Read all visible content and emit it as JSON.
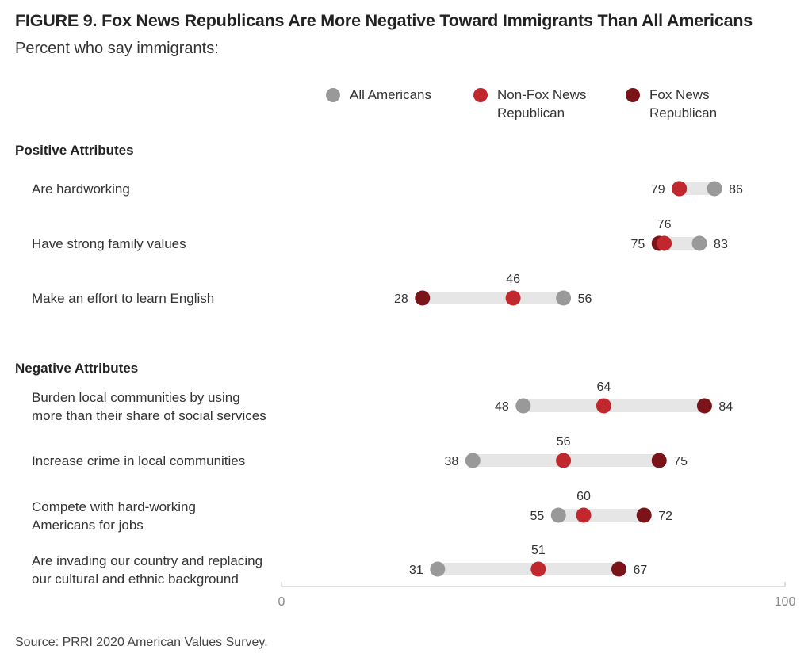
{
  "title": "FIGURE 9. Fox News Republicans Are More Negative Toward Immigrants Than All Americans",
  "subtitle": "Percent who say immigrants:",
  "source": "Source: PRRI 2020 American Values Survey.",
  "legend": [
    {
      "label": "All Americans",
      "color": "#999999"
    },
    {
      "label": "Non-Fox News\nRepublican",
      "color": "#c0282d"
    },
    {
      "label": "Fox News\nRepublican",
      "color": "#7a1418"
    }
  ],
  "sections": {
    "positive": "Positive Attributes",
    "negative": "Negative Attributes"
  },
  "chart_data": {
    "type": "dot",
    "xlim": [
      0,
      100
    ],
    "x_ticks": [
      "0",
      "100"
    ],
    "series": [
      {
        "name": "All Americans",
        "color": "#999999"
      },
      {
        "name": "Non-Fox News Republican",
        "color": "#c0282d"
      },
      {
        "name": "Fox News Republican",
        "color": "#7a1418"
      }
    ],
    "rows": [
      {
        "label": "Are hardworking",
        "section": "Positive Attributes",
        "all": 86,
        "nonfox": 79,
        "fox": 79
      },
      {
        "label": "Have strong family values",
        "section": "Positive Attributes",
        "all": 83,
        "nonfox": 76,
        "fox": 75
      },
      {
        "label": "Make an effort to learn English",
        "section": "Positive Attributes",
        "all": 56,
        "nonfox": 46,
        "fox": 28
      },
      {
        "label": "Burden local communities by using\nmore than their share of social services",
        "section": "Negative Attributes",
        "all": 48,
        "nonfox": 64,
        "fox": 84
      },
      {
        "label": "Increase crime in local communities",
        "section": "Negative Attributes",
        "all": 38,
        "nonfox": 56,
        "fox": 75
      },
      {
        "label": "Compete with hard-working\nAmericans for jobs",
        "section": "Negative Attributes",
        "all": 55,
        "nonfox": 60,
        "fox": 72
      },
      {
        "label": "Are invading our country and replacing\nour cultural and ethnic background",
        "section": "Negative Attributes",
        "all": 31,
        "nonfox": 51,
        "fox": 67
      }
    ]
  }
}
